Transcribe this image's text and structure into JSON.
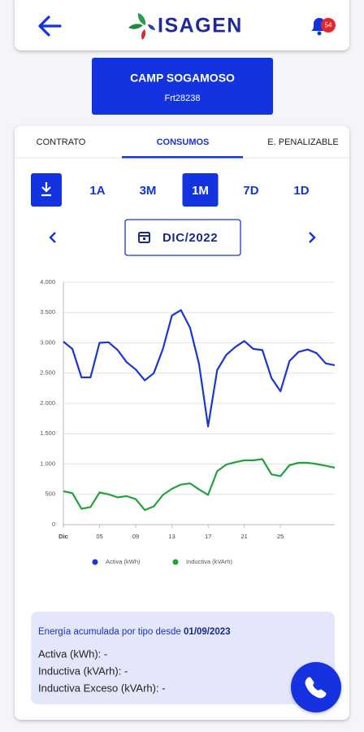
{
  "header": {
    "title": "ISAGEN",
    "badge": "54"
  },
  "station": {
    "name": "CAMP SOGAMOSO",
    "code": "Frt28238"
  },
  "tabs": [
    "CONTRATO",
    "CONSUMOS",
    "E. PENALIZABLE"
  ],
  "selected_tab": 1,
  "periods": [
    "1A",
    "3M",
    "1M",
    "7D",
    "1D"
  ],
  "selected_period": 2,
  "date": "DIC/2022",
  "chart_data": {
    "type": "line",
    "x": [
      1,
      2,
      3,
      4,
      5,
      6,
      7,
      8,
      9,
      10,
      11,
      12,
      13,
      14,
      15,
      16,
      17,
      18,
      19,
      20,
      21,
      22,
      23,
      24,
      25,
      26,
      27,
      28,
      29,
      30,
      31
    ],
    "xlim": [
      1,
      31
    ],
    "xticks": [
      {
        "value": 1,
        "label": "Dic"
      },
      {
        "value": 5,
        "label": "05"
      },
      {
        "value": 9,
        "label": "09"
      },
      {
        "value": 13,
        "label": "13"
      },
      {
        "value": 17,
        "label": "17"
      },
      {
        "value": 21,
        "label": "21"
      },
      {
        "value": 25,
        "label": "25"
      }
    ],
    "ylim": [
      0,
      4000
    ],
    "yticks": [
      0,
      {
        "value": 500,
        "label": "500"
      },
      {
        "value": 1000,
        "label": "1.000"
      },
      {
        "value": 1500,
        "label": "1.500"
      },
      {
        "value": 2000,
        "label": "2.000"
      },
      {
        "value": 2500,
        "label": "2.500"
      },
      {
        "value": 3000,
        "label": "3.000"
      },
      {
        "value": 3500,
        "label": "3.500"
      },
      {
        "value": 4000,
        "label": "4.000"
      }
    ],
    "grid": true,
    "legend": "bottom",
    "series": [
      {
        "name": "Activa (kWh)",
        "color": "#1a35d4",
        "values": [
          3020,
          2900,
          2430,
          2430,
          3000,
          3010,
          2880,
          2680,
          2560,
          2380,
          2500,
          2900,
          3450,
          3540,
          3250,
          2650,
          1620,
          2550,
          2800,
          2930,
          3030,
          2900,
          2880,
          2420,
          2200,
          2700,
          2850,
          2890,
          2830,
          2660,
          2630
        ]
      },
      {
        "name": "Inductiva (kVArh)",
        "color": "#1fa33a",
        "values": [
          550,
          520,
          260,
          290,
          530,
          500,
          450,
          470,
          420,
          240,
          300,
          490,
          590,
          660,
          680,
          580,
          490,
          880,
          990,
          1030,
          1060,
          1060,
          1080,
          830,
          800,
          980,
          1020,
          1020,
          1000,
          970,
          940
        ]
      }
    ]
  },
  "info": {
    "label": "Energía acumulada por tipo desde",
    "date": "01/09/2023",
    "rows": [
      "Activa (kWh): -",
      "Inductiva (kVArh): -",
      "Inductiva Exceso (kVArh): -"
    ]
  }
}
